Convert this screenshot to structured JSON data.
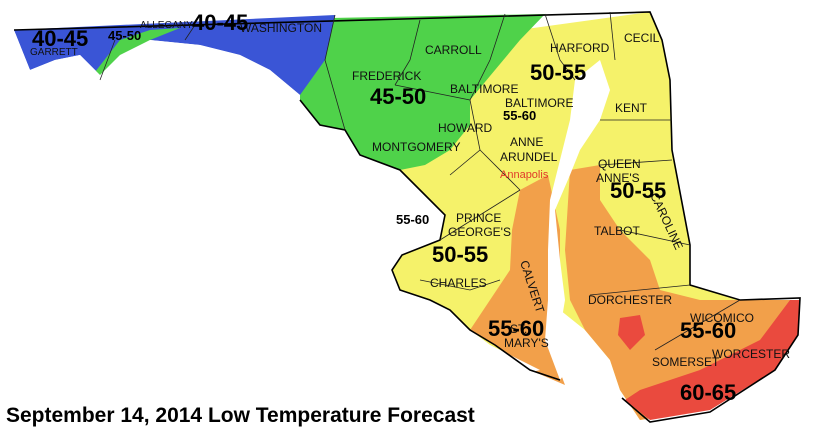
{
  "title": "September 14, 2014 Low Temperature Forecast",
  "colors": {
    "blue": "#3a55d6",
    "green": "#4fd24a",
    "yellow": "#f5f26a",
    "orange": "#f2a04a",
    "red": "#ea4a3e",
    "water": "#ffffff",
    "border": "#000000"
  },
  "ranges": {
    "garrett": "40-45",
    "allegany_small": "45-50",
    "allegany_washington": "40-45",
    "frederick": "45-50",
    "harford": "50-55",
    "baltimore_city": "55-60",
    "queen_annes": "50-55",
    "dc_area": "55-60",
    "charles_pg": "50-55",
    "st_marys": "55-60",
    "wicomico": "55-60",
    "worcester": "60-65"
  },
  "counties": {
    "garrett": "GARRETT",
    "allegany": "ALLEGANY",
    "washington": "WASHINGTON",
    "frederick": "FREDERICK",
    "carroll": "CARROLL",
    "baltimore": "BALTIMORE",
    "harford": "HARFORD",
    "cecil": "CECIL",
    "baltimore_city": "BALTIMORE",
    "howard": "HOWARD",
    "montgomery": "MONTGOMERY",
    "anne_arundel_1": "ANNE",
    "anne_arundel_2": "ARUNDEL",
    "kent": "KENT",
    "queen_annes_1": "QUEEN",
    "queen_annes_2": "ANNE'S",
    "caroline": "CAROLINE",
    "talbot": "TALBOT",
    "prince_georges_1": "PRINCE",
    "prince_georges_2": "GEORGE'S",
    "calvert": "CALVERT",
    "charles": "CHARLES",
    "st_marys_1": "ST.",
    "st_marys_2": "MARY'S",
    "dorchester": "DORCHESTER",
    "wicomico": "WICOMICO",
    "somerset": "SOMERSET",
    "worcester": "WORCESTER"
  },
  "cities": {
    "annapolis": "Annapolis"
  }
}
